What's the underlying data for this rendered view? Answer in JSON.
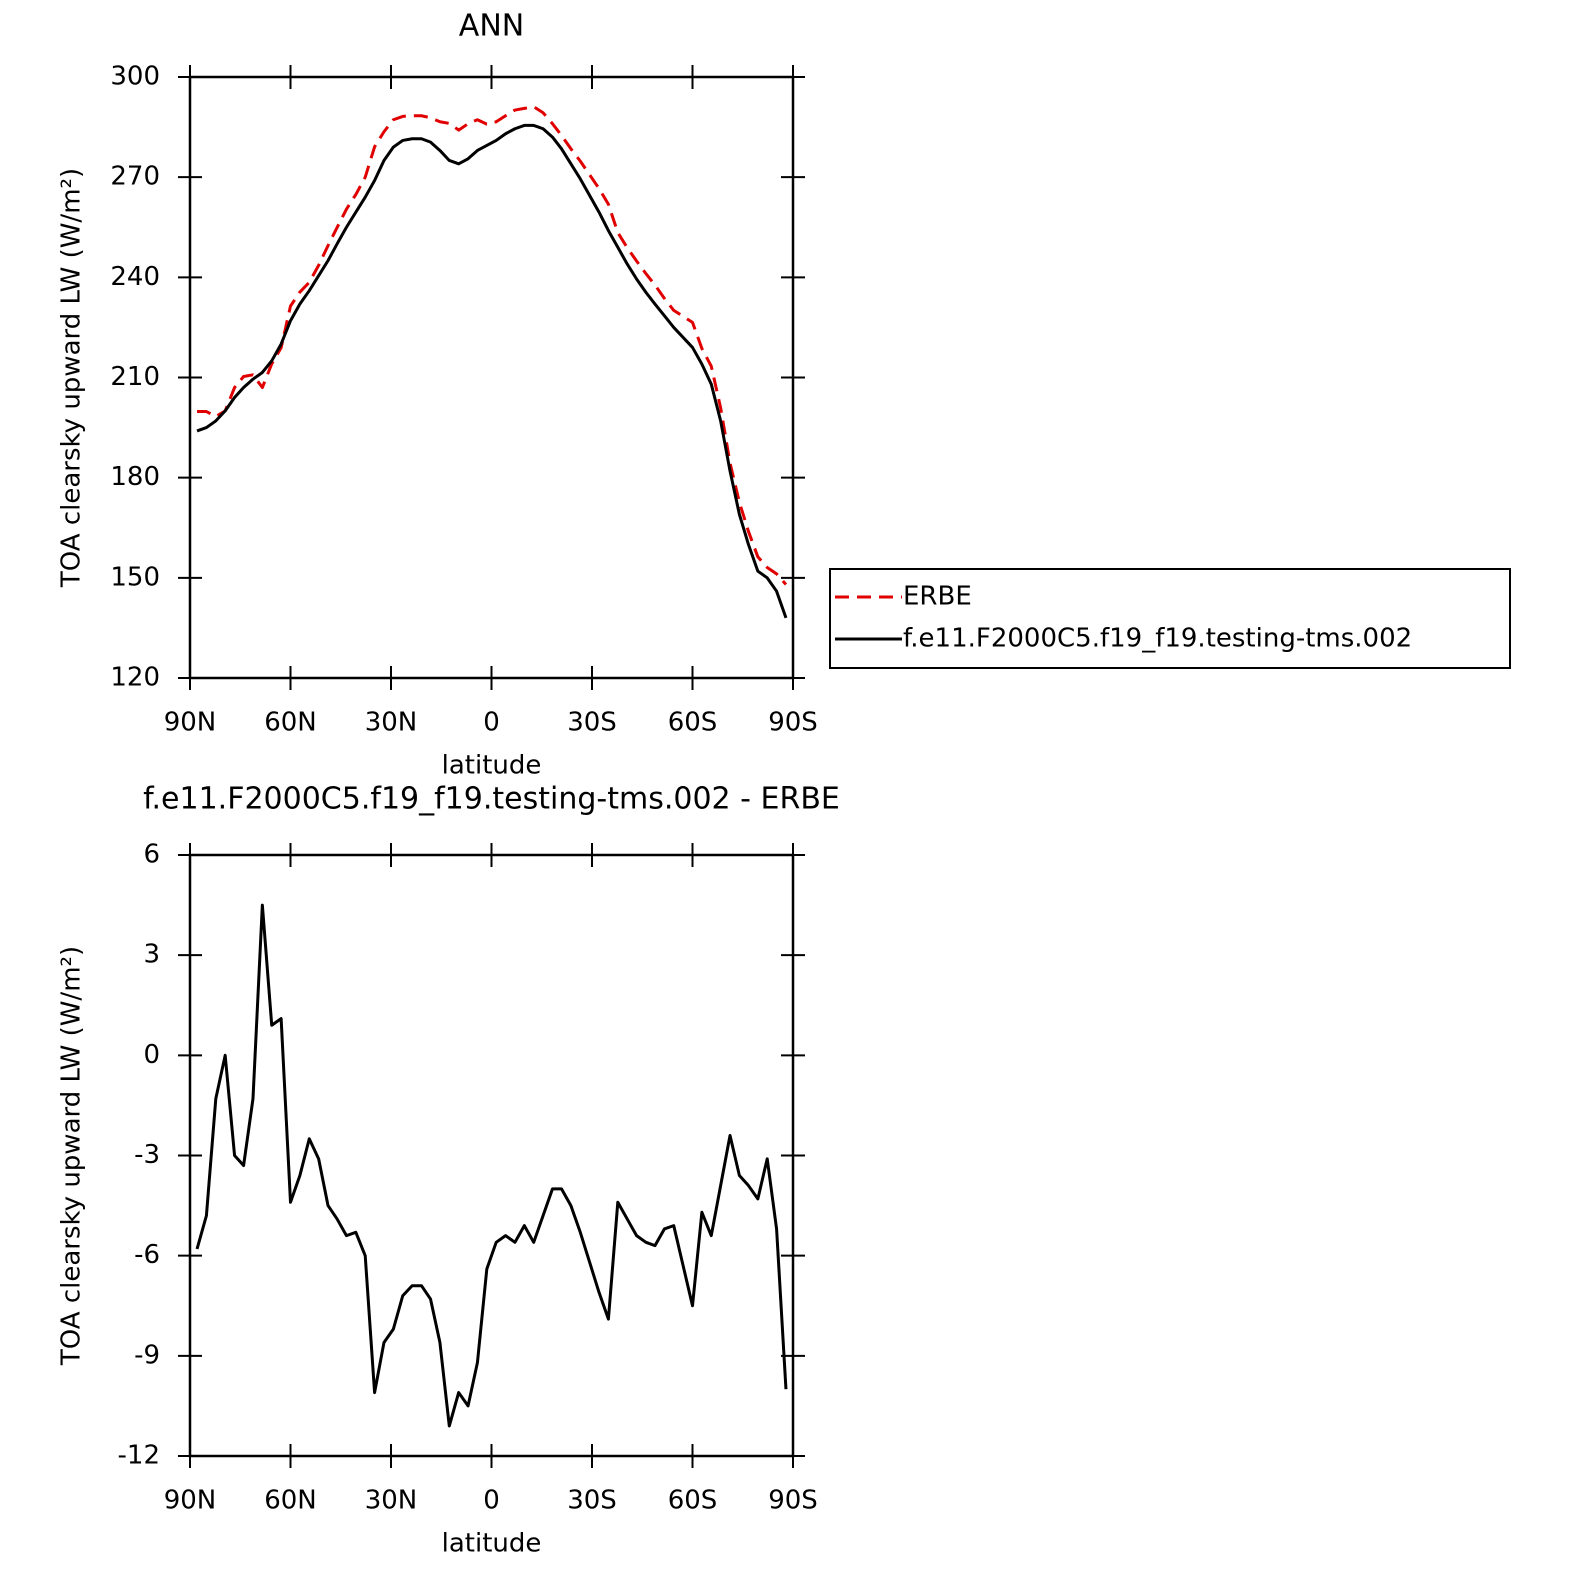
{
  "chart_data": [
    {
      "type": "line",
      "title": "ANN",
      "xlabel": "latitude",
      "ylabel": "TOA clearsky upward LW (W/m²)",
      "x": [
        87.9,
        85.1,
        82.3,
        79.5,
        76.7,
        74.0,
        71.2,
        68.4,
        65.6,
        62.8,
        60.0,
        57.2,
        54.4,
        51.6,
        48.8,
        46.1,
        43.3,
        40.5,
        37.7,
        34.9,
        32.1,
        29.3,
        26.5,
        23.7,
        20.9,
        18.2,
        15.4,
        12.6,
        9.8,
        7.0,
        4.2,
        1.4,
        -1.4,
        -4.2,
        -7.0,
        -9.8,
        -12.6,
        -15.4,
        -18.2,
        -20.9,
        -23.7,
        -26.5,
        -29.3,
        -32.1,
        -34.9,
        -37.7,
        -40.5,
        -43.3,
        -46.1,
        -48.8,
        -51.6,
        -54.4,
        -57.2,
        -60.0,
        -62.8,
        -65.6,
        -68.4,
        -71.2,
        -74.0,
        -76.7,
        -79.5,
        -82.3,
        -85.1,
        -87.9
      ],
      "series": [
        {
          "name": "ERBE",
          "color": "#e00000",
          "linestyle": "dashed",
          "values": [
            199.8,
            199.8,
            198.3,
            200,
            207,
            210.3,
            210.8,
            207,
            214.1,
            218.9,
            231.4,
            235.6,
            238.5,
            243.6,
            249.5,
            254.9,
            260.4,
            264.8,
            270,
            279.1,
            283.6,
            287.2,
            288.2,
            288.4,
            288.4,
            287.8,
            286.6,
            286.1,
            284.1,
            286,
            287.2,
            285.9,
            286.6,
            288.4,
            290.1,
            290.6,
            291.1,
            289.3,
            286,
            282.5,
            278.5,
            274.8,
            270.7,
            266.6,
            261.9,
            253.4,
            248.9,
            244.9,
            241.1,
            237.7,
            233.7,
            230.1,
            228.3,
            226.5,
            218.7,
            213.4,
            200.9,
            184.4,
            172.6,
            163.9,
            156.3,
            153.1,
            151.2,
            148
          ]
        },
        {
          "name": "f.e11.F2000C5.f19_f19.testing-tms.002",
          "color": "#000000",
          "linestyle": "solid",
          "values": [
            194,
            195,
            197,
            200,
            204,
            207,
            209.5,
            211.5,
            215,
            220,
            227,
            232,
            236,
            240.5,
            245,
            250,
            255,
            259.5,
            264,
            269,
            275,
            279,
            281,
            281.5,
            281.5,
            280.5,
            278,
            275,
            274,
            275.5,
            278,
            279.5,
            281,
            283,
            284.5,
            285.5,
            285.5,
            284.5,
            282,
            278.5,
            274,
            269.5,
            264.5,
            259.5,
            254,
            249,
            244,
            239.5,
            235.5,
            232,
            228.5,
            225,
            222,
            219,
            214,
            208,
            197,
            182,
            169,
            160,
            152,
            150,
            146,
            138
          ]
        }
      ],
      "xlim": [
        90,
        -90
      ],
      "xticks": [
        {
          "value": 90,
          "label": "90N"
        },
        {
          "value": 60,
          "label": "60N"
        },
        {
          "value": 30,
          "label": "30N"
        },
        0,
        {
          "value": -30,
          "label": "30S"
        },
        {
          "value": -60,
          "label": "60S"
        },
        {
          "value": -90,
          "label": "90S"
        }
      ],
      "ylim": [
        120,
        300
      ],
      "yticks": [
        120,
        150,
        180,
        210,
        240,
        270,
        300
      ],
      "legend": "right",
      "grid": false
    },
    {
      "type": "line",
      "title": "f.e11.F2000C5.f19_f19.testing-tms.002 - ERBE",
      "xlabel": "latitude",
      "ylabel": "TOA clearsky upward LW (W/m²)",
      "x": [
        87.9,
        85.1,
        82.3,
        79.5,
        76.7,
        74.0,
        71.2,
        68.4,
        65.6,
        62.8,
        60.0,
        57.2,
        54.4,
        51.6,
        48.8,
        46.1,
        43.3,
        40.5,
        37.7,
        34.9,
        32.1,
        29.3,
        26.5,
        23.7,
        20.9,
        18.2,
        15.4,
        12.6,
        9.8,
        7.0,
        4.2,
        1.4,
        -1.4,
        -4.2,
        -7.0,
        -9.8,
        -12.6,
        -15.4,
        -18.2,
        -20.9,
        -23.7,
        -26.5,
        -29.3,
        -32.1,
        -34.9,
        -37.7,
        -40.5,
        -43.3,
        -46.1,
        -48.8,
        -51.6,
        -54.4,
        -57.2,
        -60.0,
        -62.8,
        -65.6,
        -68.4,
        -71.2,
        -74.0,
        -76.7,
        -79.5,
        -82.3,
        -85.1,
        -87.9
      ],
      "color": "#000000",
      "values": [
        -5.8,
        -4.8,
        -1.3,
        0,
        -3,
        -3.3,
        -1.3,
        4.5,
        0.9,
        1.1,
        -4.4,
        -3.6,
        -2.5,
        -3.1,
        -4.5,
        -4.9,
        -5.4,
        -5.3,
        -6,
        -10.1,
        -8.6,
        -8.2,
        -7.2,
        -6.9,
        -6.9,
        -7.3,
        -8.6,
        -11.1,
        -10.1,
        -10.5,
        -9.2,
        -6.4,
        -5.6,
        -5.4,
        -5.6,
        -5.1,
        -5.6,
        -4.8,
        -4,
        -4,
        -4.5,
        -5.3,
        -6.2,
        -7.1,
        -7.9,
        -4.4,
        -4.9,
        -5.4,
        -5.6,
        -5.7,
        -5.2,
        -5.1,
        -6.3,
        -7.5,
        -4.7,
        -5.4,
        -3.9,
        -2.4,
        -3.6,
        -3.9,
        -4.3,
        -3.1,
        -5.2,
        -10
      ],
      "xlim": [
        90,
        -90
      ],
      "xticks": [
        {
          "value": 90,
          "label": "90N"
        },
        {
          "value": 60,
          "label": "60N"
        },
        {
          "value": 30,
          "label": "30N"
        },
        0,
        {
          "value": -30,
          "label": "30S"
        },
        {
          "value": -60,
          "label": "60S"
        },
        {
          "value": -90,
          "label": "90S"
        }
      ],
      "ylim": [
        -12,
        6
      ],
      "yticks": [
        -12,
        -9,
        -6,
        -3,
        0,
        3,
        6
      ],
      "grid": false
    }
  ]
}
